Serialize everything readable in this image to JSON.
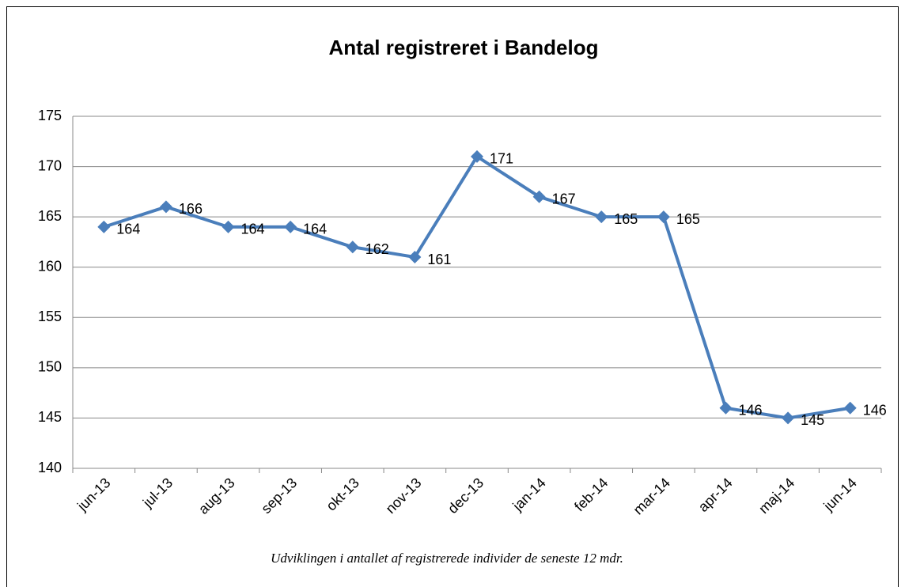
{
  "chart_data": {
    "type": "line",
    "title": "Antal registreret i Bandelog",
    "caption": "Udviklingen i antallet af registrerede individer de seneste 12 mdr.",
    "categories": [
      "jun-13",
      "jul-13",
      "aug-13",
      "sep-13",
      "okt-13",
      "nov-13",
      "dec-13",
      "jan-14",
      "feb-14",
      "mar-14",
      "apr-14",
      "maj-14",
      "jun-14"
    ],
    "values": [
      164,
      166,
      164,
      164,
      162,
      161,
      171,
      167,
      165,
      165,
      146,
      145,
      146
    ],
    "color": "#4a7ebb",
    "ylim": [
      140,
      175
    ],
    "yticks": [
      140,
      145,
      150,
      155,
      160,
      165,
      170,
      175
    ],
    "grid": true
  }
}
